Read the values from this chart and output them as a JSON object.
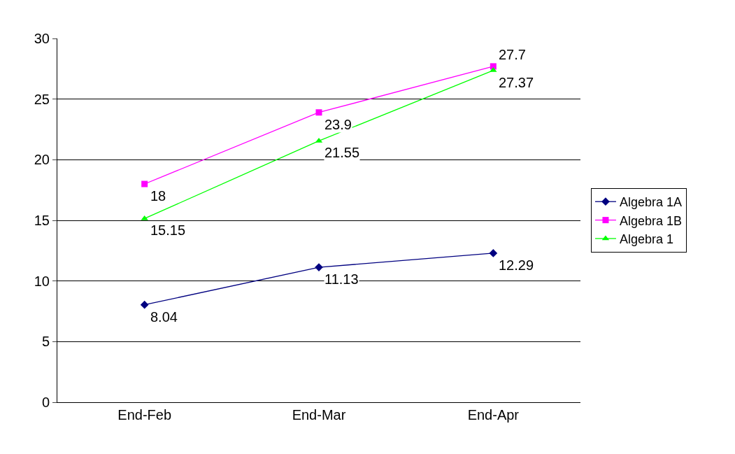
{
  "chart_data": {
    "type": "line",
    "categories": [
      "End-Feb",
      "End-Mar",
      "End-Apr"
    ],
    "series": [
      {
        "name": "Algebra 1A",
        "color": "#000080",
        "marker": "diamond",
        "values": [
          8.04,
          11.13,
          12.29
        ]
      },
      {
        "name": "Algebra 1B",
        "color": "#ff00ff",
        "marker": "square",
        "values": [
          18,
          23.9,
          27.7
        ]
      },
      {
        "name": "Algebra 1",
        "color": "#00ff00",
        "marker": "triangle",
        "values": [
          15.15,
          21.55,
          27.37
        ]
      }
    ],
    "ylim": [
      0,
      30
    ],
    "yticks": [
      0,
      5,
      10,
      15,
      20,
      25,
      30
    ],
    "grid": "y",
    "legend": "right",
    "data_labels": true
  }
}
